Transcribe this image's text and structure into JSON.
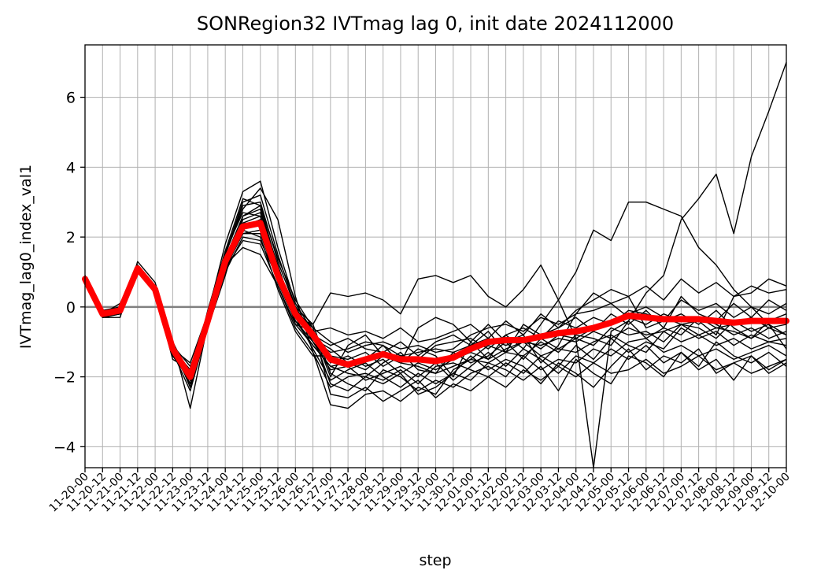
{
  "chart_data": {
    "type": "line",
    "title": "SONRegion32 IVTmag lag 0, init date 2024112000",
    "xlabel": "step",
    "ylabel": "IVTmag_lag0_index_val1",
    "ylim": [
      -4.6,
      7.5
    ],
    "yticks": [
      "−4",
      "−2",
      "0",
      "2",
      "4",
      "6"
    ],
    "ytick_values": [
      -4,
      -2,
      0,
      2,
      4,
      6
    ],
    "categories": [
      "11-20-00",
      "11-20-12",
      "11-21-00",
      "11-21-12",
      "11-22-00",
      "11-22-12",
      "11-23-00",
      "11-23-12",
      "11-24-00",
      "11-24-12",
      "11-25-00",
      "11-25-12",
      "11-26-00",
      "11-26-12",
      "11-27-00",
      "11-27-12",
      "11-28-00",
      "11-28-12",
      "11-29-00",
      "11-29-12",
      "11-30-00",
      "11-30-12",
      "12-01-00",
      "12-01-12",
      "12-02-00",
      "12-02-12",
      "12-03-00",
      "12-03-12",
      "12-04-00",
      "12-04-12",
      "12-05-00",
      "12-05-12",
      "12-06-00",
      "12-06-12",
      "12-07-00",
      "12-07-12",
      "12-08-00",
      "12-08-12",
      "12-09-00",
      "12-09-12",
      "12-10-00"
    ],
    "grid": true,
    "reference_line": {
      "y": 0,
      "color": "#808080"
    },
    "colors": {
      "members": "#000000",
      "mean": "#ff0000"
    },
    "series": [
      {
        "values": [
          0.8,
          -0.2,
          -0.1,
          1.1,
          0.5,
          -1.2,
          -2.0,
          -0.4,
          1.3,
          2.3,
          2.4,
          0.9,
          -0.2,
          -0.8,
          -1.5,
          -1.65,
          -1.5,
          -1.35,
          -1.5,
          -1.5,
          -1.55,
          -1.45,
          -1.2,
          -1.0,
          -0.95,
          -0.95,
          -0.85,
          -0.75,
          -0.7,
          -0.6,
          -0.45,
          -0.25,
          -0.3,
          -0.35,
          -0.35,
          -0.35,
          -0.4,
          -0.45,
          -0.4,
          -0.4,
          -0.4
        ]
      }
    ],
    "members": [
      [
        0.9,
        -0.3,
        -0.3,
        1.3,
        0.7,
        -1.0,
        -2.9,
        -0.5,
        1.5,
        2.8,
        3.4,
        2.5,
        0.3,
        -1.3,
        -2.8,
        -2.9,
        -2.5,
        -2.4,
        -2.7,
        -2.3,
        -2.5,
        -1.8,
        -1.5,
        -1.1,
        -1.3,
        -1.0,
        -1.4,
        -1.2,
        -0.9,
        -0.6,
        -0.5,
        -0.2,
        0.0,
        -0.3,
        -0.5,
        -0.4,
        -0.8,
        0.3,
        0.4,
        0.8,
        0.6
      ],
      [
        0.7,
        -0.2,
        0.1,
        1.0,
        0.4,
        -1.5,
        -1.8,
        -0.3,
        1.0,
        2.0,
        1.9,
        0.8,
        -0.3,
        -0.5,
        0.4,
        0.3,
        0.4,
        0.2,
        -0.2,
        0.8,
        0.9,
        0.7,
        0.9,
        0.3,
        0.0,
        0.5,
        1.2,
        0.2,
        -0.9,
        -4.6,
        -0.7,
        -0.4,
        0.4,
        0.9,
        2.5,
        3.1,
        3.8,
        2.1,
        4.3,
        5.6,
        7.0
      ],
      [
        0.8,
        -0.1,
        0.0,
        1.2,
        0.6,
        -1.1,
        -2.3,
        -0.2,
        1.8,
        3.3,
        3.6,
        1.7,
        0.1,
        -0.7,
        -2.0,
        -1.1,
        -0.8,
        -1.4,
        -1.6,
        -0.6,
        -0.3,
        -0.5,
        -1.0,
        -1.5,
        -0.8,
        -1.2,
        -0.5,
        0.2,
        1.0,
        2.2,
        1.9,
        3.0,
        3.0,
        2.8,
        2.6,
        1.7,
        1.2,
        0.5,
        0.0,
        -0.5,
        -1.2
      ],
      [
        0.9,
        -0.3,
        -0.1,
        1.1,
        0.5,
        -1.3,
        -2.0,
        -0.6,
        0.9,
        2.6,
        2.8,
        1.0,
        -0.2,
        -0.9,
        -1.2,
        -1.6,
        -1.5,
        -1.1,
        -1.6,
        -1.2,
        -1.4,
        -2.0,
        -1.0,
        -0.5,
        -1.0,
        -0.8,
        -1.6,
        -1.1,
        -0.2,
        0.4,
        0.1,
        0.3,
        -0.6,
        -0.4,
        -0.2,
        -0.5,
        -0.1,
        -0.6,
        -0.9,
        -0.4,
        -0.2
      ],
      [
        0.8,
        -0.2,
        -0.2,
        1.2,
        0.5,
        -1.0,
        -2.1,
        -0.1,
        1.6,
        3.1,
        2.9,
        1.1,
        -0.5,
        -1.1,
        -1.7,
        -1.9,
        -2.0,
        -1.6,
        -1.3,
        -1.8,
        -1.9,
        -1.3,
        -1.6,
        -1.4,
        -1.0,
        -1.5,
        -0.9,
        -1.2,
        -1.3,
        -1.0,
        -0.8,
        -1.1,
        -1.3,
        -0.7,
        -1.0,
        -0.8,
        -1.1,
        -0.9,
        -1.2,
        -1.0,
        -0.9
      ],
      [
        0.7,
        -0.3,
        -0.2,
        1.0,
        0.6,
        -1.4,
        -1.9,
        -0.4,
        1.2,
        1.7,
        1.5,
        0.6,
        -0.6,
        -1.3,
        -2.3,
        -2.0,
        -1.9,
        -2.1,
        -1.8,
        -2.2,
        -1.7,
        -1.6,
        -1.8,
        -2.0,
        -1.6,
        -1.9,
        -1.4,
        -1.7,
        -1.1,
        -1.5,
        -0.9,
        -1.3,
        -1.0,
        -1.2,
        -0.6,
        -0.9,
        -0.7,
        -1.1,
        -0.8,
        -1.0,
        -1.1
      ],
      [
        0.8,
        -0.2,
        -0.1,
        1.1,
        0.4,
        -1.2,
        -2.2,
        -0.3,
        1.4,
        2.4,
        2.6,
        0.9,
        -0.1,
        -0.6,
        -1.0,
        -1.3,
        -1.1,
        -1.0,
        -1.2,
        -1.1,
        -1.3,
        -1.2,
        -0.8,
        -0.6,
        -0.5,
        -0.7,
        -0.3,
        -0.5,
        -0.2,
        -0.1,
        0.1,
        -0.3,
        -0.5,
        -0.2,
        -0.4,
        -0.3,
        -0.6,
        -0.5,
        -0.3,
        -0.6,
        -0.5
      ],
      [
        0.9,
        -0.1,
        -0.1,
        1.2,
        0.5,
        -1.1,
        -1.7,
        -0.5,
        1.1,
        2.1,
        2.2,
        0.7,
        -0.4,
        -1.0,
        -1.6,
        -1.4,
        -1.7,
        -1.5,
        -1.9,
        -1.6,
        -1.8,
        -1.5,
        -1.3,
        -1.5,
        -1.2,
        -1.0,
        -1.1,
        -0.9,
        -1.0,
        -0.7,
        -0.9,
        -0.6,
        -0.8,
        -0.7,
        -0.5,
        -0.8,
        -0.6,
        -0.7,
        -0.9,
        -0.6,
        -0.8
      ],
      [
        0.8,
        -0.2,
        -0.2,
        1.1,
        0.6,
        -1.3,
        -2.4,
        -0.6,
        1.5,
        2.9,
        3.0,
        1.3,
        0.0,
        -0.5,
        -1.9,
        -2.2,
        -2.4,
        -1.8,
        -2.0,
        -2.4,
        -2.1,
        -2.3,
        -1.9,
        -1.7,
        -2.0,
        -1.4,
        -1.8,
        -1.5,
        -1.6,
        -1.2,
        -1.4,
        -1.0,
        -0.9,
        -1.3,
        -1.1,
        -1.4,
        -1.2,
        -1.5,
        -1.3,
        -1.1,
        -1.4
      ],
      [
        0.7,
        -0.3,
        -0.1,
        1.0,
        0.4,
        -1.2,
        -1.6,
        -0.2,
        1.3,
        2.2,
        2.0,
        0.5,
        -0.7,
        -1.4,
        -1.4,
        -1.5,
        -1.3,
        -1.7,
        -1.4,
        -1.5,
        -1.1,
        -1.0,
        -0.9,
        -1.2,
        -0.8,
        -0.6,
        -0.9,
        -0.4,
        -0.6,
        -0.3,
        -0.5,
        -0.1,
        -0.2,
        -0.4,
        0.2,
        -0.1,
        0.1,
        -0.3,
        0.0,
        -0.2,
        0.1
      ],
      [
        0.8,
        -0.2,
        -0.2,
        1.2,
        0.5,
        -1.0,
        -2.0,
        -0.4,
        1.2,
        2.5,
        2.7,
        1.2,
        -0.3,
        -1.2,
        -2.1,
        -1.8,
        -1.6,
        -2.0,
        -2.3,
        -1.9,
        -2.2,
        -1.9,
        -1.4,
        -1.8,
        -1.5,
        -1.7,
        -2.2,
        -1.6,
        -1.9,
        -2.3,
        -1.7,
        -1.2,
        -1.8,
        -1.4,
        -1.6,
        -1.2,
        -1.9,
        -1.6,
        -1.4,
        -1.8,
        -1.5
      ],
      [
        0.9,
        -0.3,
        -0.2,
        1.1,
        0.5,
        -1.4,
        -2.1,
        -0.5,
        1.0,
        2.3,
        2.5,
        1.0,
        -0.2,
        -0.8,
        -1.1,
        -0.9,
        -1.2,
        -1.3,
        -1.0,
        -1.4,
        -1.0,
        -0.8,
        -1.1,
        -0.7,
        -1.3,
        -0.5,
        -0.8,
        -0.6,
        -0.3,
        -0.7,
        -0.2,
        -0.5,
        -0.1,
        -0.6,
        0.3,
        -0.2,
        -0.4,
        0.1,
        -0.3,
        0.2,
        -0.1
      ],
      [
        0.8,
        -0.1,
        -0.1,
        1.0,
        0.6,
        -1.1,
        -1.9,
        -0.3,
        1.6,
        2.7,
        2.6,
        1.1,
        -0.1,
        -1.0,
        -1.8,
        -1.7,
        -2.1,
        -1.9,
        -1.7,
        -2.0,
        -1.6,
        -2.1,
        -1.7,
        -1.3,
        -1.7,
        -1.2,
        -1.5,
        -1.9,
        -1.4,
        -1.6,
        -1.2,
        -1.5,
        -1.1,
        -1.6,
        -1.3,
        -1.7,
        -1.0,
        -1.4,
        -1.6,
        -1.3,
        -1.7
      ],
      [
        0.7,
        -0.2,
        -0.2,
        1.1,
        0.4,
        -1.3,
        -2.2,
        -0.4,
        1.1,
        1.9,
        1.8,
        0.6,
        -0.5,
        -0.7,
        -0.6,
        -0.8,
        -0.7,
        -0.9,
        -0.6,
        -1.0,
        -0.9,
        -0.7,
        -0.5,
        -0.9,
        -0.4,
        -0.8,
        -0.2,
        -0.6,
        -0.1,
        0.2,
        0.5,
        0.3,
        0.6,
        0.2,
        0.8,
        0.4,
        0.7,
        0.3,
        0.6,
        0.4,
        0.5
      ],
      [
        0.8,
        -0.3,
        -0.1,
        1.2,
        0.5,
        -1.2,
        -2.0,
        -0.2,
        1.4,
        2.6,
        2.9,
        1.4,
        0.2,
        -0.6,
        -2.5,
        -2.6,
        -2.3,
        -2.7,
        -2.4,
        -2.1,
        -2.6,
        -2.2,
        -2.4,
        -2.0,
        -2.3,
        -1.8,
        -2.1,
        -1.7,
        -2.0,
        -1.6,
        -1.9,
        -1.8,
        -1.5,
        -1.9,
        -1.7,
        -1.4,
        -1.8,
        -1.6,
        -1.9,
        -1.7,
        -1.5
      ],
      [
        0.9,
        -0.2,
        -0.2,
        1.0,
        0.5,
        -1.1,
        -2.3,
        -0.6,
        1.3,
        2.4,
        2.3,
        0.8,
        -0.3,
        -0.9,
        -1.3,
        -1.2,
        -1.0,
        -1.1,
        -1.4,
        -1.3,
        -1.2,
        -1.3,
        -1.1,
        -0.9,
        -1.1,
        -0.9,
        -1.2,
        -0.8,
        -0.9,
        -1.1,
        -0.6,
        -0.8,
        -0.7,
        -1.0,
        -0.5,
        -0.6,
        -0.9,
        -0.4,
        -0.7,
        -0.5,
        -0.8
      ],
      [
        0.8,
        -0.2,
        -0.1,
        1.1,
        0.6,
        -1.2,
        -1.8,
        -0.3,
        1.2,
        2.1,
        2.1,
        0.7,
        -0.4,
        -1.1,
        -1.7,
        -1.6,
        -1.8,
        -1.4,
        -1.6,
        -1.7,
        -1.9,
        -1.7,
        -1.5,
        -1.6,
        -1.3,
        -1.4,
        -1.0,
        -1.3,
        -0.8,
        -0.9,
        -1.1,
        -0.4,
        -0.9,
        -0.6,
        -0.8,
        -0.3,
        -0.5,
        -0.8,
        -0.6,
        -0.9,
        -0.7
      ],
      [
        0.7,
        -0.3,
        -0.2,
        1.2,
        0.5,
        -1.0,
        -2.1,
        -0.5,
        1.5,
        3.0,
        3.2,
        1.5,
        0.0,
        -0.8,
        -2.2,
        -2.4,
        -2.0,
        -2.2,
        -1.9,
        -2.5,
        -2.3,
        -1.9,
        -2.1,
        -1.6,
        -1.8,
        -2.1,
        -1.7,
        -2.4,
        -1.5,
        -1.9,
        -2.2,
        -1.4,
        -1.6,
        -2.0,
        -1.3,
        -1.8,
        -1.5,
        -2.1,
        -1.4,
        -1.9,
        -1.6
      ]
    ]
  }
}
